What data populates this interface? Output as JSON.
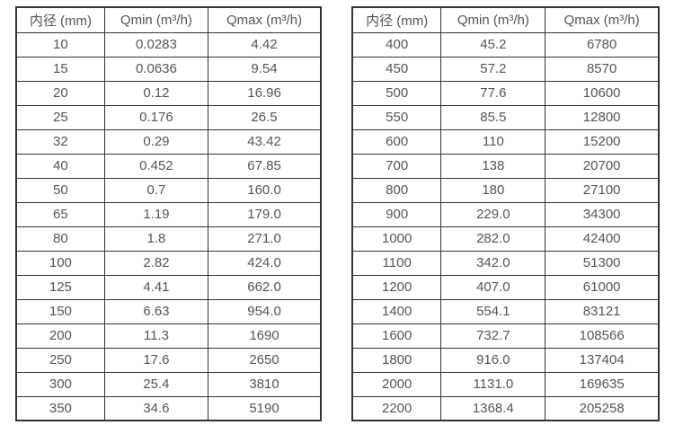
{
  "page": {
    "background_color": "#ffffff",
    "text_color": "#555557",
    "border_color": "#333333"
  },
  "tables": [
    {
      "name": "flow-range-table-small-diameters",
      "headers": [
        "内径 (mm)",
        "Qmin (m³/h)",
        "Qmax (m³/h)"
      ],
      "rows": [
        [
          "10",
          "0.0283",
          "4.42"
        ],
        [
          "15",
          "0.0636",
          "9.54"
        ],
        [
          "20",
          "0.12",
          "16.96"
        ],
        [
          "25",
          "0.176",
          "26.5"
        ],
        [
          "32",
          "0.29",
          "43.42"
        ],
        [
          "40",
          "0.452",
          "67.85"
        ],
        [
          "50",
          "0.7",
          "160.0"
        ],
        [
          "65",
          "1.19",
          "179.0"
        ],
        [
          "80",
          "1.8",
          "271.0"
        ],
        [
          "100",
          "2.82",
          "424.0"
        ],
        [
          "125",
          "4.41",
          "662.0"
        ],
        [
          "150",
          "6.63",
          "954.0"
        ],
        [
          "200",
          "11.3",
          "1690"
        ],
        [
          "250",
          "17.6",
          "2650"
        ],
        [
          "300",
          "25.4",
          "3810"
        ],
        [
          "350",
          "34.6",
          "5190"
        ]
      ]
    },
    {
      "name": "flow-range-table-large-diameters",
      "headers": [
        "内径 (mm)",
        "Qmin (m³/h)",
        "Qmax (m³/h)"
      ],
      "rows": [
        [
          "400",
          "45.2",
          "6780"
        ],
        [
          "450",
          "57.2",
          "8570"
        ],
        [
          "500",
          "77.6",
          "10600"
        ],
        [
          "550",
          "85.5",
          "12800"
        ],
        [
          "600",
          "110",
          "15200"
        ],
        [
          "700",
          "138",
          "20700"
        ],
        [
          "800",
          "180",
          "27100"
        ],
        [
          "900",
          "229.0",
          "34300"
        ],
        [
          "1000",
          "282.0",
          "42400"
        ],
        [
          "1100",
          "342.0",
          "51300"
        ],
        [
          "1200",
          "407.0",
          "61000"
        ],
        [
          "1400",
          "554.1",
          "83121"
        ],
        [
          "1600",
          "732.7",
          "108566"
        ],
        [
          "1800",
          "916.0",
          "137404"
        ],
        [
          "2000",
          "1131.0",
          "169635"
        ],
        [
          "2200",
          "1368.4",
          "205258"
        ]
      ]
    }
  ]
}
